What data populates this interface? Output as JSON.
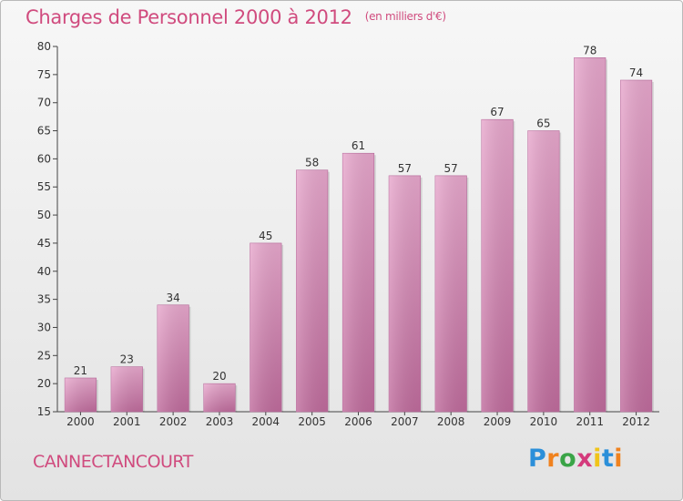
{
  "title": "Charges de Personnel 2000 à 2012",
  "unit_note": "(en milliers d'€)",
  "commune": "CANNECTANCOURT",
  "logo": {
    "letters": [
      "P",
      "r",
      "o",
      "x",
      "i",
      "t",
      "i"
    ],
    "colors": [
      "#2b8fd9",
      "#f0821e",
      "#3aa447",
      "#d43a7c",
      "#f0c419",
      "#2b8fd9",
      "#f0821e"
    ]
  },
  "colors": {
    "bar_top": "#e8a8cd",
    "bar_bottom": "#c06c9d",
    "accent": "#d04b7e"
  },
  "chart_data": {
    "type": "bar",
    "title": "Charges de Personnel 2000 à 2012",
    "categories": [
      "2000",
      "2001",
      "2002",
      "2003",
      "2004",
      "2005",
      "2006",
      "2007",
      "2008",
      "2009",
      "2010",
      "2011",
      "2012"
    ],
    "values": [
      21,
      23,
      34,
      20,
      45,
      58,
      61,
      57,
      57,
      67,
      65,
      78,
      74
    ],
    "value_labels": [
      "21",
      "23",
      "34",
      "20",
      "45",
      "58",
      "61",
      "57",
      "57",
      "67",
      "65",
      "78",
      "74"
    ],
    "ylim": [
      15,
      80
    ],
    "yticks": [
      15,
      20,
      25,
      30,
      35,
      40,
      45,
      50,
      55,
      60,
      65,
      70,
      75,
      80
    ],
    "ytick_labels": [
      "15",
      "20",
      "25",
      "30",
      "35",
      "40",
      "45",
      "50",
      "55",
      "60",
      "65",
      "70",
      "75",
      "80"
    ],
    "grid": false,
    "xlabel": "",
    "ylabel": ""
  }
}
